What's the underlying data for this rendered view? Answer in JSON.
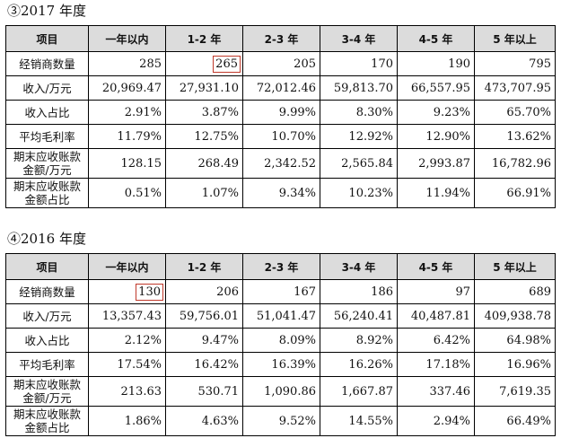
{
  "sections": [
    {
      "title": "③2017 年度",
      "headers": [
        "项目",
        "一年以内",
        "1-2 年",
        "2-3 年",
        "3-4 年",
        "4-5 年",
        "5 年以上"
      ],
      "rows": [
        {
          "label": "经销商数量",
          "values": [
            "285",
            "265",
            "205",
            "170",
            "190",
            "795"
          ]
        },
        {
          "label": "收入/万元",
          "values": [
            "20,969.47",
            "27,931.10",
            "72,012.46",
            "59,813.70",
            "66,557.95",
            "473,707.95"
          ]
        },
        {
          "label": "收入占比",
          "values": [
            "2.91%",
            "3.87%",
            "9.99%",
            "8.30%",
            "9.23%",
            "65.70%"
          ]
        },
        {
          "label": "平均毛利率",
          "values": [
            "11.79%",
            "12.75%",
            "10.70%",
            "12.92%",
            "12.90%",
            "13.62%"
          ]
        },
        {
          "label": "期末应收账款金额/万元",
          "values": [
            "128.15",
            "268.49",
            "2,342.52",
            "2,565.84",
            "2,993.87",
            "16,782.96"
          ]
        },
        {
          "label": "期末应收账款金额占比",
          "values": [
            "0.51%",
            "1.07%",
            "9.34%",
            "10.23%",
            "11.94%",
            "66.91%"
          ]
        }
      ]
    },
    {
      "title": "④2016 年度",
      "headers": [
        "项目",
        "一年以内",
        "1-2 年",
        "2-3 年",
        "3-4 年",
        "4-5 年",
        "5 年以上"
      ],
      "rows": [
        {
          "label": "经销商数量",
          "values": [
            "130",
            "206",
            "167",
            "186",
            "97",
            "689"
          ]
        },
        {
          "label": "收入/万元",
          "values": [
            "13,357.43",
            "59,756.01",
            "51,041.47",
            "56,240.41",
            "40,487.81",
            "409,938.78"
          ]
        },
        {
          "label": "收入占比",
          "values": [
            "2.12%",
            "9.47%",
            "8.09%",
            "8.92%",
            "6.42%",
            "64.98%"
          ]
        },
        {
          "label": "平均毛利率",
          "values": [
            "17.54%",
            "16.42%",
            "16.39%",
            "16.26%",
            "17.18%",
            "16.96%"
          ]
        },
        {
          "label": "期末应收账款金额/万元",
          "values": [
            "213.63",
            "530.71",
            "1,090.86",
            "1,667.87",
            "337.46",
            "7,619.35"
          ]
        },
        {
          "label": "期末应收账款金额占比",
          "values": [
            "1.86%",
            "4.63%",
            "9.52%",
            "14.55%",
            "2.94%",
            "66.49%"
          ]
        }
      ]
    }
  ],
  "highlight_color": "#c0392b"
}
